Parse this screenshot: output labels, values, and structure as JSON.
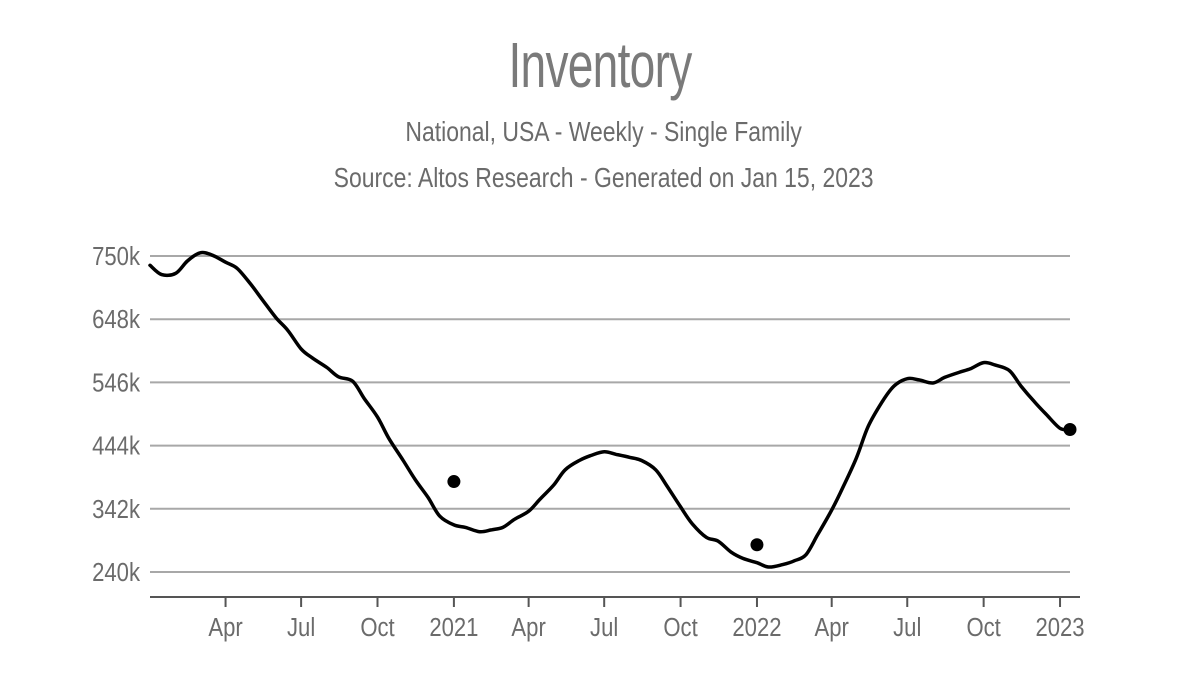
{
  "chart_data": {
    "type": "line",
    "title": "Inventory",
    "subtitle": "National, USA - Weekly - Single Family",
    "source": "Source: Altos Research - Generated on Jan 15, 2023",
    "ylim": [
      240000,
      750000
    ],
    "yticks": [
      240000,
      342000,
      444000,
      546000,
      648000,
      750000
    ],
    "ytick_labels": [
      "240k",
      "342k",
      "444k",
      "546k",
      "648k",
      "750k"
    ],
    "xlim": [
      "2020-01-01",
      "2023-01-13"
    ],
    "xticks": [
      "2020-04-01",
      "2020-07-01",
      "2020-10-01",
      "2021-01-01",
      "2021-04-01",
      "2021-07-01",
      "2021-10-01",
      "2022-01-01",
      "2022-04-01",
      "2022-07-01",
      "2022-10-01",
      "2023-01-01"
    ],
    "xtick_labels": [
      "Apr",
      "Jul",
      "Oct",
      "2021",
      "Apr",
      "Jul",
      "Oct",
      "2022",
      "Apr",
      "Jul",
      "Oct",
      "2023"
    ],
    "grid": "horizontal",
    "line_color": "#000000",
    "series": [
      {
        "x": [
          "2020-01-01",
          "2020-01-15",
          "2020-02-01",
          "2020-02-15",
          "2020-03-01",
          "2020-03-15",
          "2020-04-01",
          "2020-04-15",
          "2020-05-01",
          "2020-05-15",
          "2020-06-01",
          "2020-06-15",
          "2020-07-01",
          "2020-07-15",
          "2020-08-01",
          "2020-08-15",
          "2020-09-01",
          "2020-09-15",
          "2020-10-01",
          "2020-10-15",
          "2020-11-01",
          "2020-11-15",
          "2020-12-01",
          "2020-12-15",
          "2021-01-01",
          "2021-01-15",
          "2021-02-01",
          "2021-02-15",
          "2021-03-01",
          "2021-03-15",
          "2021-04-01",
          "2021-04-15",
          "2021-05-01",
          "2021-05-15",
          "2021-06-01",
          "2021-06-15",
          "2021-07-01",
          "2021-07-15",
          "2021-08-01",
          "2021-08-15",
          "2021-09-01",
          "2021-09-15",
          "2021-10-01",
          "2021-10-15",
          "2021-11-01",
          "2021-11-15",
          "2021-12-01",
          "2021-12-15",
          "2022-01-01",
          "2022-01-15",
          "2022-02-01",
          "2022-02-15",
          "2022-03-01",
          "2022-03-15",
          "2022-04-01",
          "2022-04-15",
          "2022-05-01",
          "2022-05-15",
          "2022-06-01",
          "2022-06-15",
          "2022-07-01",
          "2022-07-15",
          "2022-08-01",
          "2022-08-15",
          "2022-09-01",
          "2022-09-15",
          "2022-10-01",
          "2022-10-15",
          "2022-11-01",
          "2022-11-15",
          "2022-12-01",
          "2022-12-15",
          "2023-01-01",
          "2023-01-13"
        ],
        "y": [
          735000,
          720000,
          722000,
          742000,
          755000,
          752000,
          740000,
          730000,
          705000,
          680000,
          650000,
          630000,
          600000,
          585000,
          570000,
          555000,
          548000,
          520000,
          490000,
          455000,
          420000,
          390000,
          360000,
          330000,
          316000,
          312000,
          305000,
          308000,
          312000,
          325000,
          338000,
          358000,
          380000,
          405000,
          420000,
          428000,
          434000,
          430000,
          425000,
          420000,
          405000,
          378000,
          345000,
          318000,
          296000,
          290000,
          272000,
          262000,
          255000,
          248000,
          252000,
          258000,
          268000,
          300000,
          340000,
          378000,
          425000,
          475000,
          515000,
          540000,
          552000,
          550000,
          545000,
          554000,
          562000,
          568000,
          578000,
          574000,
          565000,
          540000,
          515000,
          495000,
          472000,
          470000
        ]
      }
    ],
    "markers": [
      {
        "x": "2021-01-01",
        "y": 386000
      },
      {
        "x": "2022-01-01",
        "y": 284000
      },
      {
        "x": "2023-01-13",
        "y": 470000
      }
    ]
  }
}
